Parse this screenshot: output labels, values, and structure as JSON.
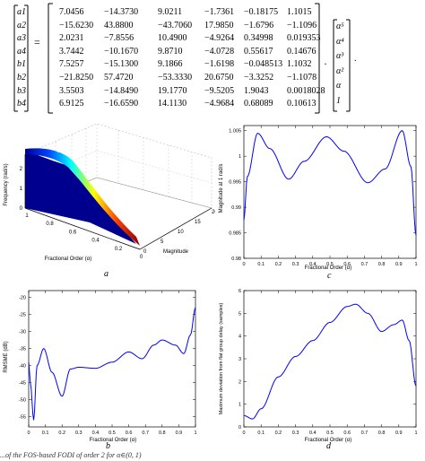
{
  "equation": {
    "lhs": [
      "a1",
      "a2",
      "a3",
      "a4",
      "b1",
      "b2",
      "b3",
      "b4"
    ],
    "equals": "=",
    "matrix": [
      [
        "7.0456",
        "−14.3730",
        "9.0211",
        "−1.7361",
        "−0.18175",
        "1.1015"
      ],
      [
        "−15.6230",
        "43.8800",
        "−43.7060",
        "17.9850",
        "−1.6796",
        "−1.1096"
      ],
      [
        "2.0231",
        "−7.8556",
        "10.4900",
        "−4.9264",
        "0.34998",
        "0.019353"
      ],
      [
        "3.7442",
        "−10.1670",
        "9.8710",
        "−4.0728",
        "0.55617",
        "0.14676"
      ],
      [
        "7.5257",
        "−15.1300",
        "9.1866",
        "−1.6198",
        "−0.048513",
        "1.1032"
      ],
      [
        "−21.8250",
        "57.4720",
        "−53.3330",
        "20.6750",
        "−3.3252",
        "−1.1078"
      ],
      [
        "3.5503",
        "−14.8490",
        "19.1770",
        "−9.5205",
        "1.9043",
        "0.0018028"
      ],
      [
        "6.9125",
        "−16.6590",
        "14.1130",
        "−4.9684",
        "0.68089",
        "0.10613"
      ]
    ],
    "dot": "·",
    "rhs": [
      "α⁵",
      "α⁴",
      "α³",
      "α²",
      "α",
      "1"
    ],
    "end": "."
  },
  "panels": {
    "a": {
      "caption": "a",
      "zlabel": "Frequency (rad/s)",
      "xlabel": "Fractional Order (α)",
      "ylabel": "Magnitude",
      "zticks": [
        "0",
        "1",
        "2"
      ],
      "xticks": [
        "1",
        "0.8",
        "0.6",
        "0.4",
        "0.2",
        "0"
      ],
      "yticks": [
        "0",
        "5",
        "10",
        "15",
        "20"
      ]
    },
    "b": {
      "caption": "b",
      "ylabel": "RMSME (dB)",
      "xlabel": "Fractional Order (α)",
      "yticks": [
        "-20",
        "-25",
        "-30",
        "-35",
        "-40",
        "-45",
        "-50",
        "-55"
      ],
      "xticks": [
        "0",
        "0.1",
        "0.2",
        "0.3",
        "0.4",
        "0.5",
        "0.6",
        "0.7",
        "0.8",
        "0.9",
        "1"
      ]
    },
    "c": {
      "caption": "c",
      "ylabel": "Magnitude at 1 rad/s",
      "xlabel": "Fractional Order (α)",
      "yticks": [
        "1.005",
        "1",
        "0.995",
        "0.99",
        "0.985",
        "0.98"
      ],
      "xticks": [
        "0",
        "0.1",
        "0.2",
        "0.3",
        "0.4",
        "0.5",
        "0.6",
        "0.7",
        "0.8",
        "0.9",
        "1"
      ]
    },
    "d": {
      "caption": "d",
      "ylabel": "Maximum deviation from flat group delay (samples)",
      "xlabel": "Fractional Order (α)",
      "yticks": [
        "0",
        "1",
        "2",
        "3",
        "4",
        "5",
        "6"
      ],
      "xticks": [
        "0",
        "0.1",
        "0.2",
        "0.3",
        "0.4",
        "0.5",
        "0.6",
        "0.7",
        "0.8",
        "0.9",
        "1"
      ]
    }
  },
  "footer": "...of the FOS-based FODI of order 2 for α∈(0, 1)"
}
